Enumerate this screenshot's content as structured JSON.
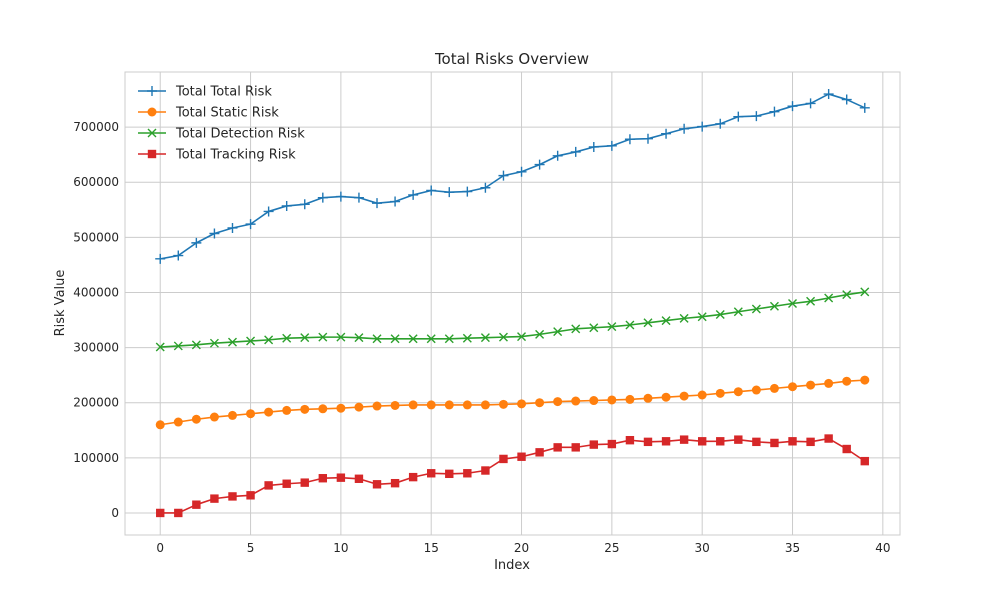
{
  "chart_data": {
    "type": "line",
    "title": "Total Risks Overview",
    "xlabel": "Index",
    "ylabel": "Risk Value",
    "xlim": [
      -1.95,
      40.95
    ],
    "ylim": [
      -40000,
      800000
    ],
    "xticks": [
      0,
      5,
      10,
      15,
      20,
      25,
      30,
      35,
      40
    ],
    "yticks": [
      0,
      100000,
      200000,
      300000,
      400000,
      500000,
      600000,
      700000
    ],
    "grid": true,
    "legend_position": "top-left",
    "x": [
      0,
      1,
      2,
      3,
      4,
      5,
      6,
      7,
      8,
      9,
      10,
      11,
      12,
      13,
      14,
      15,
      16,
      17,
      18,
      19,
      20,
      21,
      22,
      23,
      24,
      25,
      26,
      27,
      28,
      29,
      30,
      31,
      32,
      33,
      34,
      35,
      36,
      37,
      38,
      39
    ],
    "series": [
      {
        "name": "Total Total Risk",
        "color": "#1f77b4",
        "marker": "plus",
        "values": [
          461000,
          467000,
          490000,
          507000,
          517000,
          524000,
          547000,
          557000,
          560000,
          572000,
          574000,
          572000,
          562000,
          565000,
          577000,
          585000,
          582000,
          583000,
          590000,
          612000,
          619000,
          632000,
          648000,
          655000,
          664000,
          666000,
          678000,
          679000,
          688000,
          697000,
          701000,
          706000,
          719000,
          720000,
          728000,
          738000,
          743000,
          760000,
          750000,
          735000
        ]
      },
      {
        "name": "Total Static Risk",
        "color": "#ff7f0e",
        "marker": "circle",
        "values": [
          160000,
          165000,
          170000,
          174000,
          177000,
          180000,
          183000,
          186000,
          188000,
          189000,
          190000,
          192000,
          194000,
          195000,
          196000,
          196000,
          196000,
          196000,
          196000,
          197000,
          198000,
          200000,
          202000,
          203000,
          204000,
          205000,
          206000,
          208000,
          210000,
          212000,
          214000,
          217000,
          220000,
          223000,
          226000,
          229000,
          232000,
          235000,
          239000,
          241000
        ]
      },
      {
        "name": "Total Detection Risk",
        "color": "#2ca02c",
        "marker": "x",
        "values": [
          301000,
          303000,
          305000,
          308000,
          310000,
          312000,
          314000,
          317000,
          318000,
          319000,
          319000,
          318000,
          316000,
          316000,
          316000,
          316000,
          316000,
          317000,
          318000,
          319000,
          320000,
          324000,
          329000,
          334000,
          336000,
          338000,
          341000,
          345000,
          349000,
          353000,
          356000,
          360000,
          365000,
          370000,
          375000,
          380000,
          384000,
          390000,
          396000,
          401000
        ]
      },
      {
        "name": "Total Tracking Risk",
        "color": "#d62728",
        "marker": "square",
        "values": [
          0,
          0,
          15000,
          26000,
          30000,
          32000,
          50000,
          53000,
          55000,
          63000,
          64000,
          62000,
          52000,
          54000,
          65000,
          72000,
          71000,
          72000,
          77000,
          98000,
          102000,
          110000,
          119000,
          119000,
          124000,
          125000,
          132000,
          129000,
          130000,
          133000,
          130000,
          130000,
          133000,
          129000,
          127000,
          130000,
          129000,
          135000,
          116000,
          94000
        ]
      }
    ]
  }
}
